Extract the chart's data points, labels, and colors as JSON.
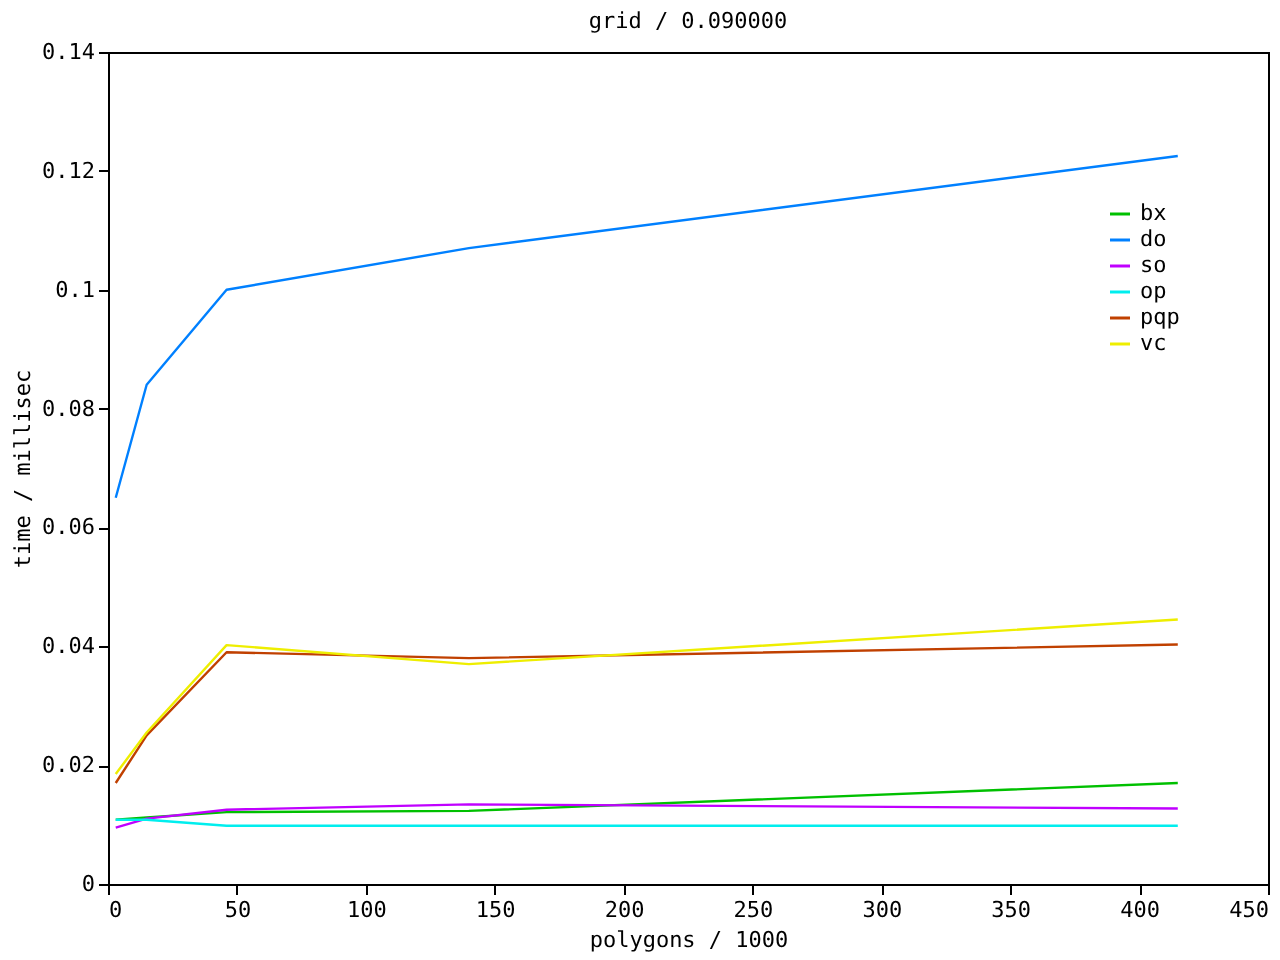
{
  "chart_data": {
    "type": "line",
    "title": "grid / 0.090000",
    "xlabel": "polygons / 1000",
    "ylabel": "time / millisec",
    "x": [
      3,
      15,
      46,
      140,
      415
    ],
    "series": [
      {
        "name": "bx",
        "color": "#00c000",
        "values": [
          0.0108,
          0.0112,
          0.0121,
          0.0123,
          0.017
        ]
      },
      {
        "name": "do",
        "color": "#0080ff",
        "values": [
          0.065,
          0.084,
          0.1,
          0.107,
          0.1225
        ]
      },
      {
        "name": "so",
        "color": "#c000ff",
        "values": [
          0.0095,
          0.011,
          0.0125,
          0.0134,
          0.0127
        ]
      },
      {
        "name": "op",
        "color": "#00eeee",
        "values": [
          0.0108,
          0.0108,
          0.0098,
          0.0098,
          0.0098
        ]
      },
      {
        "name": "pqp",
        "color": "#c04000",
        "values": [
          0.017,
          0.025,
          0.039,
          0.038,
          0.0403
        ]
      },
      {
        "name": "vc",
        "color": "#eeee00",
        "values": [
          0.0185,
          0.0255,
          0.0402,
          0.037,
          0.0445
        ]
      }
    ],
    "xlim": [
      0,
      450
    ],
    "xticks": [
      0,
      50,
      100,
      150,
      200,
      250,
      300,
      350,
      400,
      450
    ],
    "ylim": [
      0,
      0.14
    ],
    "yticks": [
      0,
      0.02,
      0.04,
      0.06,
      0.08,
      0.1,
      0.12,
      0.14
    ],
    "grid": false,
    "legend": "top right",
    "marker": "none",
    "line_style": "solid"
  }
}
